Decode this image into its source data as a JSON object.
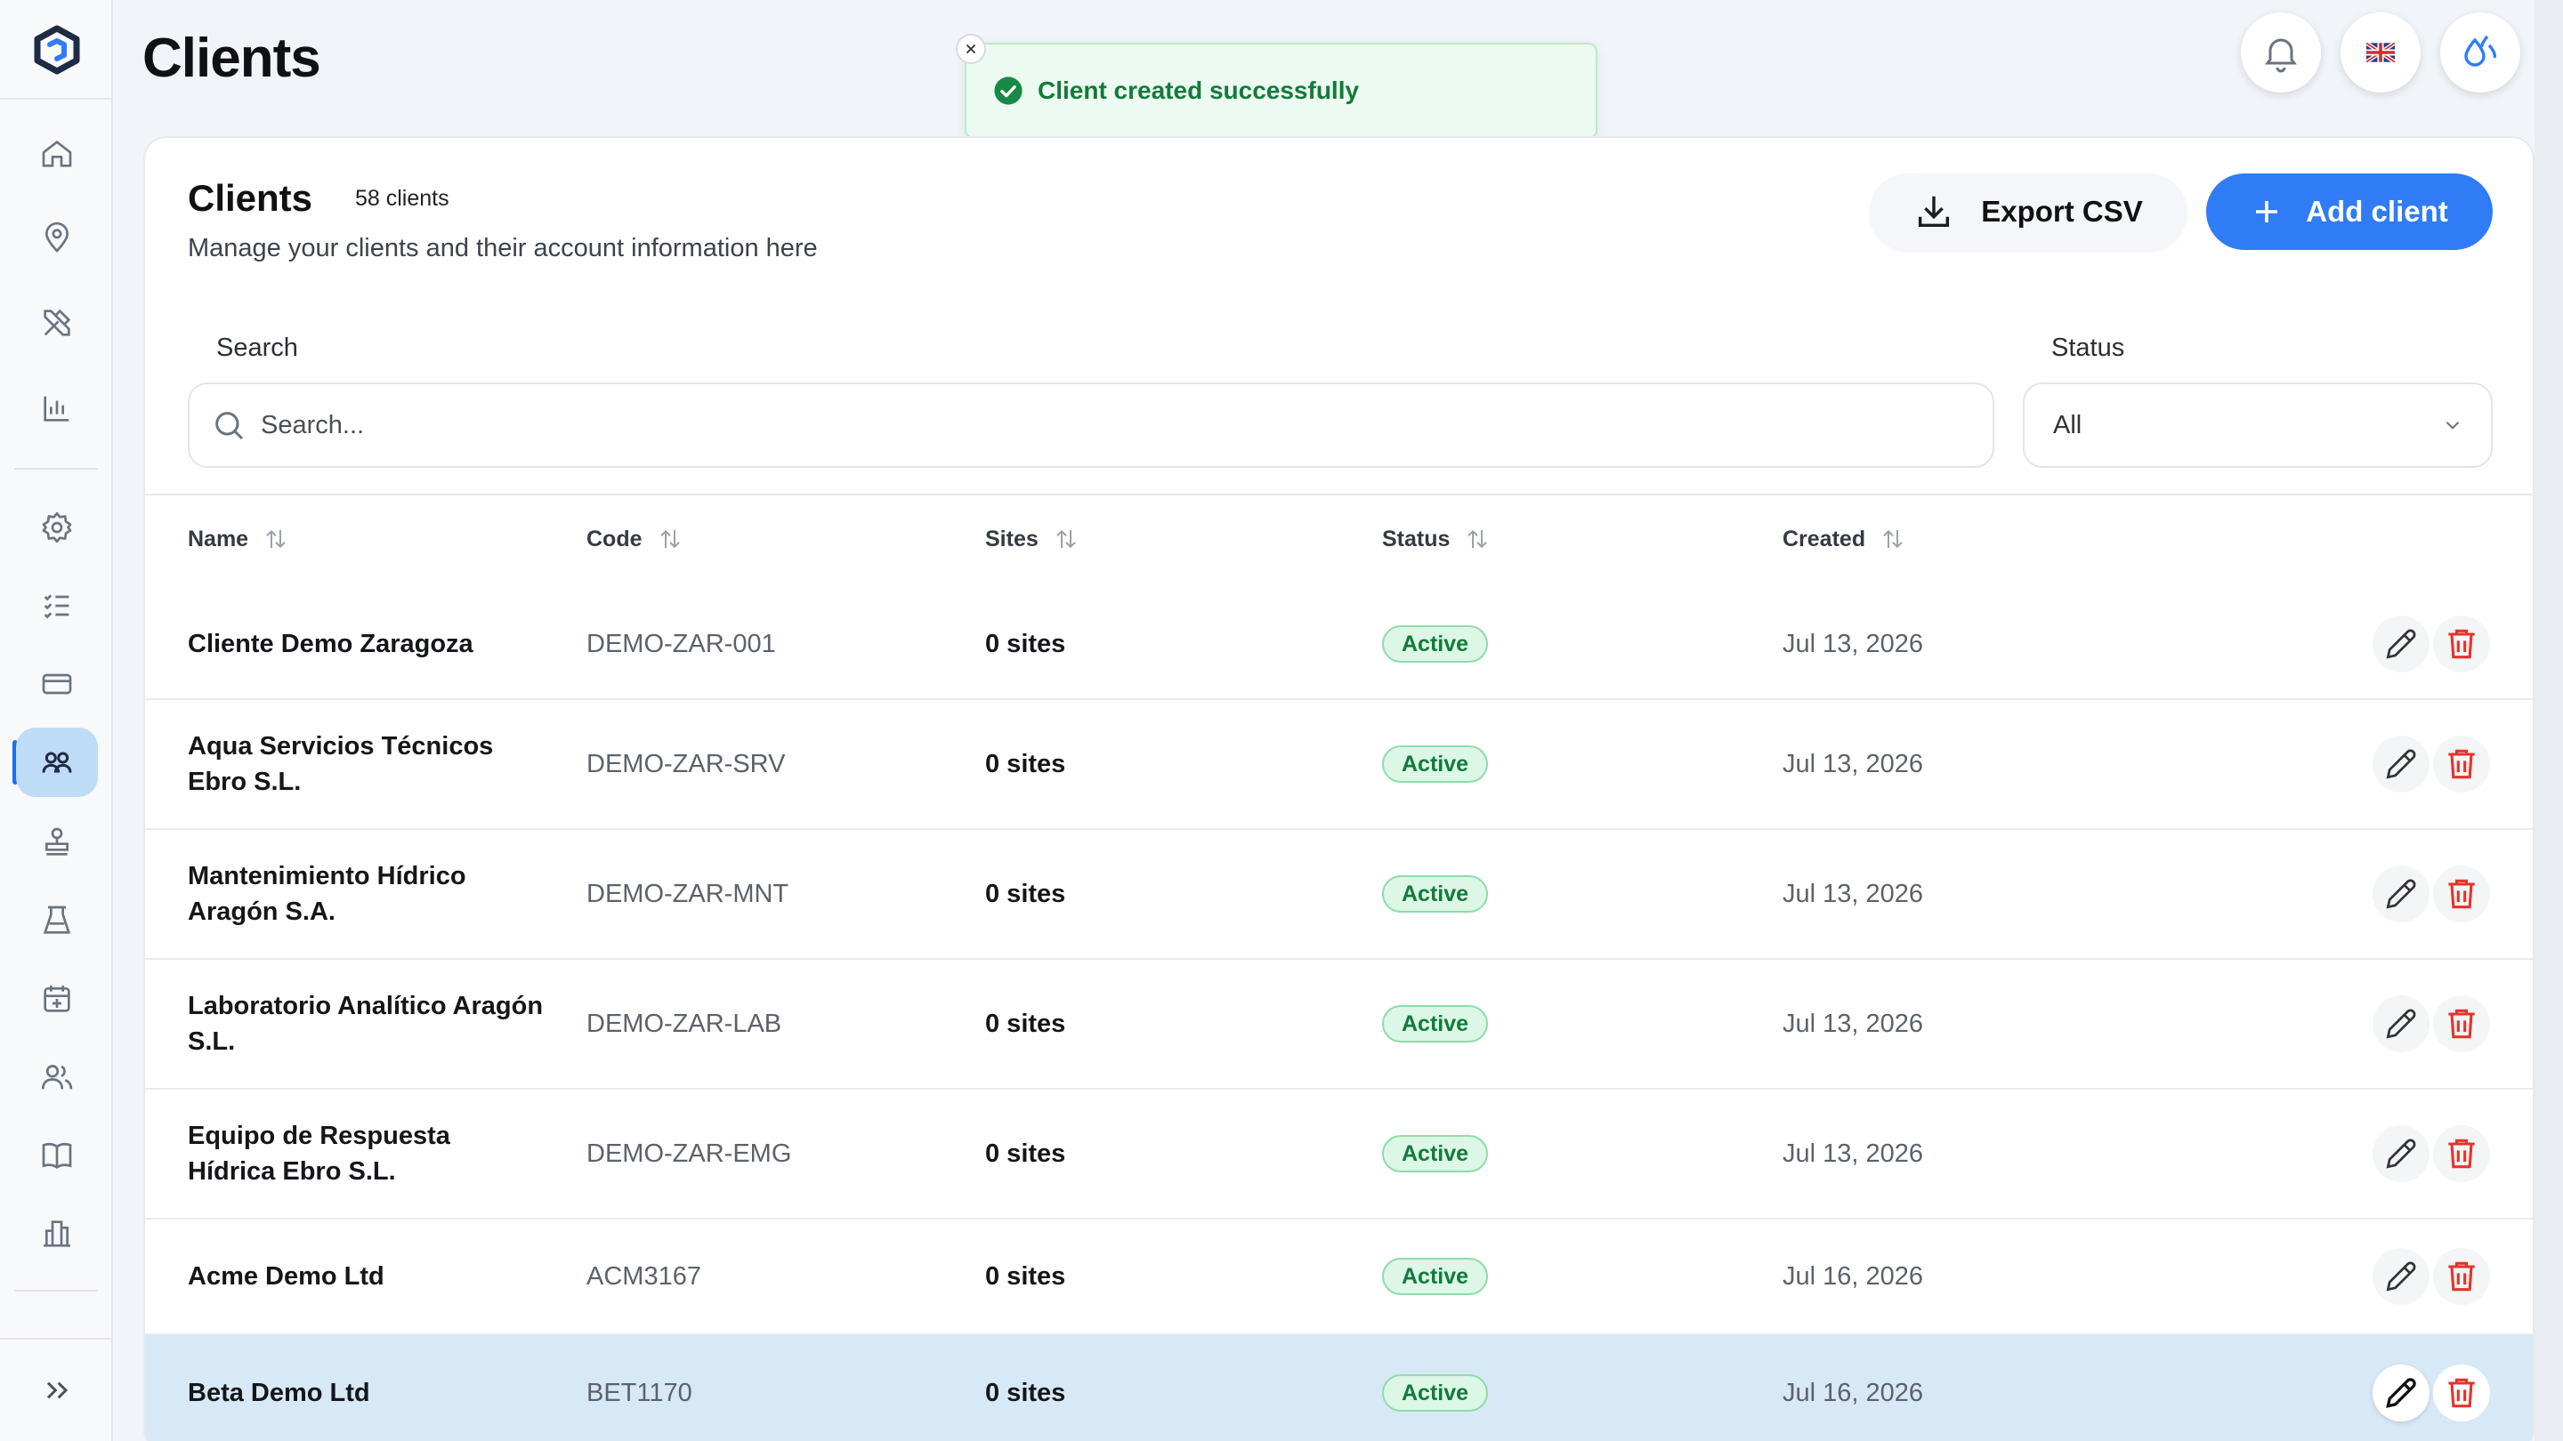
{
  "page": {
    "title": "Clients"
  },
  "toast": {
    "message": "Client created successfully"
  },
  "card": {
    "title": "Clients",
    "count": "58 clients",
    "subtitle": "Manage your clients and their account information here",
    "export_label": "Export CSV",
    "add_label": "Add client"
  },
  "filters": {
    "search_label": "Search",
    "search_placeholder": "Search...",
    "status_label": "Status",
    "status_value": "All"
  },
  "table": {
    "headers": {
      "name": "Name",
      "code": "Code",
      "sites": "Sites",
      "status": "Status",
      "created": "Created"
    },
    "rows": [
      {
        "name": "Cliente Demo Zaragoza",
        "code": "DEMO-ZAR-001",
        "sites": "0 sites",
        "status": "Active",
        "created": "Jul 13, 2026"
      },
      {
        "name": "Aqua Servicios Técnicos Ebro S.L.",
        "code": "DEMO-ZAR-SRV",
        "sites": "0 sites",
        "status": "Active",
        "created": "Jul 13, 2026"
      },
      {
        "name": "Mantenimiento Hídrico Aragón S.A.",
        "code": "DEMO-ZAR-MNT",
        "sites": "0 sites",
        "status": "Active",
        "created": "Jul 13, 2026"
      },
      {
        "name": "Laboratorio Analítico Aragón S.L.",
        "code": "DEMO-ZAR-LAB",
        "sites": "0 sites",
        "status": "Active",
        "created": "Jul 13, 2026"
      },
      {
        "name": "Equipo de Respuesta Hídrica Ebro S.L.",
        "code": "DEMO-ZAR-EMG",
        "sites": "0 sites",
        "status": "Active",
        "created": "Jul 13, 2026"
      },
      {
        "name": "Acme Demo Ltd",
        "code": "ACM3167",
        "sites": "0 sites",
        "status": "Active",
        "created": "Jul 16, 2026"
      },
      {
        "name": "Beta Demo Ltd",
        "code": "BET1170",
        "sites": "0 sites",
        "status": "Active",
        "created": "Jul 16, 2026"
      }
    ]
  },
  "colors": {
    "accent": "#2f7cf6",
    "active_badge": "#137a3c",
    "delete": "#e5332a",
    "selected_row": "#d7e8f6"
  },
  "icons": {
    "sidebar": [
      "home-icon",
      "map-pin-icon",
      "tools-icon",
      "bar-chart-icon",
      "settings-icon",
      "checklist-icon",
      "credit-card-icon",
      "clients-icon",
      "stamp-icon",
      "flask-icon",
      "calendar-icon",
      "users-icon",
      "book-icon",
      "buildings-icon",
      "expand-icon"
    ]
  }
}
